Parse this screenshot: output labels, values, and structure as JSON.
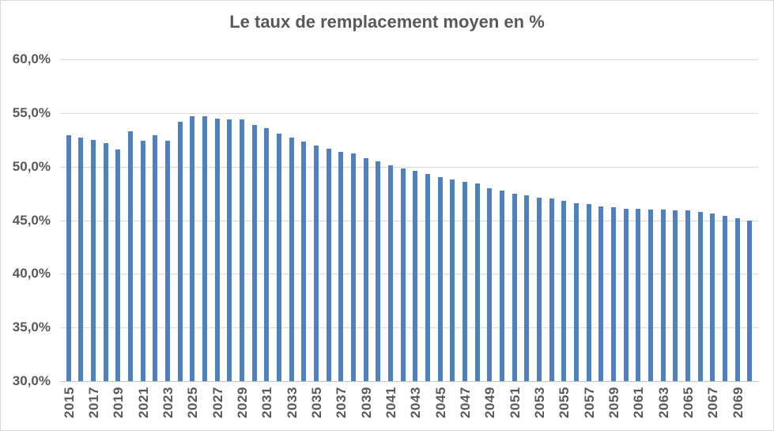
{
  "chart": {
    "title": "Le taux de remplacement moyen en %",
    "colors": {
      "bar": "#4e81bd",
      "text": "#595959",
      "gridline": "#d9d9d9",
      "axis_line": "#c6c6c6",
      "background": "#ffffff",
      "border": "#d9d9d9"
    }
  },
  "chart_data": {
    "type": "bar",
    "title": "Le taux de remplacement moyen en %",
    "xlabel": "",
    "ylabel": "",
    "ylim": [
      30,
      60
    ],
    "grid": true,
    "legend": false,
    "x": [
      2015,
      2016,
      2017,
      2018,
      2019,
      2020,
      2021,
      2022,
      2023,
      2024,
      2025,
      2026,
      2027,
      2028,
      2029,
      2030,
      2031,
      2032,
      2033,
      2034,
      2035,
      2036,
      2037,
      2038,
      2039,
      2040,
      2041,
      2042,
      2043,
      2044,
      2045,
      2046,
      2047,
      2048,
      2049,
      2050,
      2051,
      2052,
      2053,
      2054,
      2055,
      2056,
      2057,
      2058,
      2059,
      2060,
      2061,
      2062,
      2063,
      2064,
      2065,
      2066,
      2067,
      2068,
      2069,
      2070
    ],
    "values": [
      52.9,
      52.7,
      52.5,
      52.2,
      51.6,
      53.3,
      52.4,
      52.9,
      52.4,
      54.2,
      54.7,
      54.7,
      54.5,
      54.4,
      54.4,
      53.9,
      53.6,
      53.1,
      52.7,
      52.3,
      52.0,
      51.7,
      51.4,
      51.2,
      50.8,
      50.5,
      50.1,
      49.8,
      49.6,
      49.3,
      49.0,
      48.8,
      48.6,
      48.4,
      48.0,
      47.8,
      47.5,
      47.3,
      47.1,
      47.0,
      46.8,
      46.6,
      46.5,
      46.3,
      46.2,
      46.1,
      46.1,
      46.0,
      46.0,
      45.9,
      45.9,
      45.8,
      45.6,
      45.4,
      45.2,
      45.0
    ],
    "yticks": [
      {
        "value": 60,
        "label": "60,0%"
      },
      {
        "value": 55,
        "label": "55,0%"
      },
      {
        "value": 50,
        "label": "50,0%"
      },
      {
        "value": 45,
        "label": "45,0%"
      },
      {
        "value": 40,
        "label": "40,0%"
      },
      {
        "value": 35,
        "label": "35,0%"
      },
      {
        "value": 30,
        "label": "30,0%"
      }
    ],
    "xtick_labels": [
      "2015",
      "2017",
      "2019",
      "2021",
      "2023",
      "2025",
      "2027",
      "2029",
      "2031",
      "2033",
      "2035",
      "2037",
      "2039",
      "2041",
      "2043",
      "2045",
      "2047",
      "2049",
      "2051",
      "2053",
      "2055",
      "2057",
      "2059",
      "2061",
      "2063",
      "2065",
      "2067",
      "2069"
    ]
  }
}
